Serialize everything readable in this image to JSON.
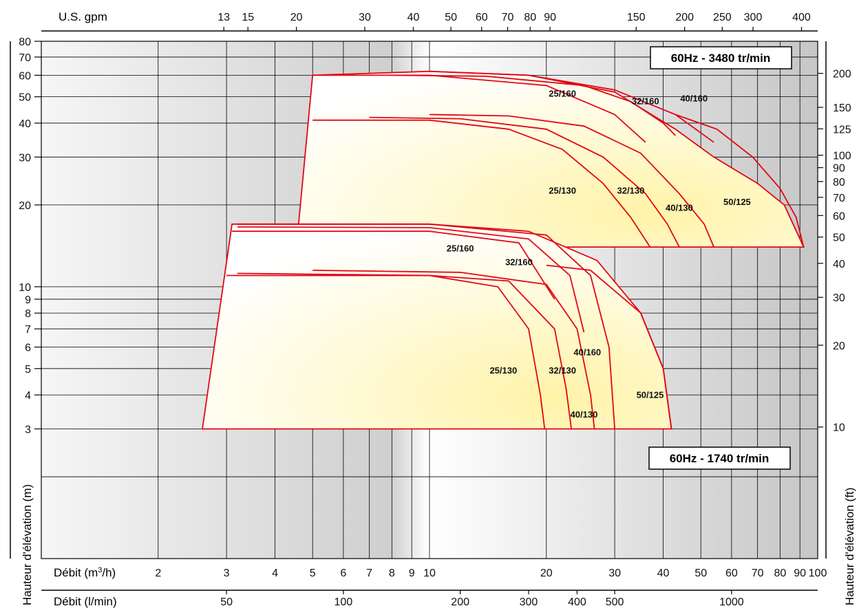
{
  "chart_data": {
    "type": "line",
    "x_scale": "log",
    "y_scale": "log",
    "xlim_m3h": [
      1,
      100
    ],
    "ylim_m": [
      1,
      80
    ],
    "axes": {
      "bottom_primary_label": "Débit (m3/h)",
      "bottom_primary_ticks": [
        "2",
        "3",
        "4",
        "5",
        "6",
        "7",
        "8",
        "9",
        "10",
        "20",
        "30",
        "40",
        "50",
        "60",
        "70",
        "80",
        "90",
        "100"
      ],
      "bottom_secondary_label": "Débit (l/min)",
      "bottom_secondary_ticks": [
        "50",
        "100",
        "200",
        "300",
        "400",
        "500",
        "1000"
      ],
      "top_label": "U.S. gpm",
      "top_ticks": [
        "13",
        "15",
        "20",
        "30",
        "40",
        "50",
        "60",
        "70",
        "80",
        "90",
        "150",
        "200",
        "250",
        "300",
        "400"
      ],
      "left_label": "Hauteur d'élévation (m)",
      "left_ticks": [
        "80",
        "70",
        "60",
        "50",
        "40",
        "30",
        "20",
        "10",
        "9",
        "8",
        "7",
        "6",
        "5",
        "4",
        "3"
      ],
      "right_label": "Hauteur d'élévation (ft)",
      "right_ticks": [
        "200",
        "150",
        "125",
        "100",
        "90",
        "80",
        "70",
        "60",
        "50",
        "40",
        "30",
        "20",
        "10"
      ]
    },
    "series_groups": [
      {
        "name": "60Hz - 3480 tr/min",
        "boundary_m3h_m": [
          [
            4.6,
            17
          ],
          [
            5,
            60
          ],
          [
            10,
            62
          ],
          [
            18,
            60
          ],
          [
            30,
            52
          ],
          [
            43,
            38
          ],
          [
            54,
            30
          ],
          [
            70,
            24
          ],
          [
            82,
            20
          ],
          [
            92,
            14
          ],
          [
            4.6,
            14
          ]
        ],
        "curves": [
          {
            "label": "25/130",
            "points": [
              [
                5,
                41
              ],
              [
                10,
                41
              ],
              [
                16,
                38
              ],
              [
                22,
                32
              ],
              [
                28,
                24
              ],
              [
                33,
                18
              ],
              [
                37,
                14
              ]
            ]
          },
          {
            "label": "32/130",
            "points": [
              [
                7,
                42
              ],
              [
                12,
                41.5
              ],
              [
                20,
                38
              ],
              [
                28,
                30
              ],
              [
                36,
                22
              ],
              [
                41,
                17
              ],
              [
                44,
                14
              ]
            ]
          },
          {
            "label": "40/130",
            "points": [
              [
                10,
                43
              ],
              [
                16,
                42.5
              ],
              [
                25,
                39
              ],
              [
                35,
                31
              ],
              [
                44,
                22
              ],
              [
                51,
                17
              ],
              [
                54,
                14
              ]
            ]
          },
          {
            "label": "25/160",
            "points": [
              [
                5,
                60
              ],
              [
                10,
                60
              ],
              [
                20,
                55
              ],
              [
                30,
                43
              ],
              [
                36,
                34
              ]
            ]
          },
          {
            "label": "32/160",
            "points": [
              [
                8,
                60
              ],
              [
                14,
                59.5
              ],
              [
                25,
                55
              ],
              [
                33,
                48
              ],
              [
                40,
                40
              ],
              [
                43,
                36
              ]
            ]
          },
          {
            "label": "40/160",
            "points": [
              [
                10,
                62
              ],
              [
                18,
                60
              ],
              [
                30,
                53
              ],
              [
                43,
                43
              ],
              [
                54,
                34
              ]
            ]
          },
          {
            "label": "50/125",
            "points": [
              [
                43,
                43
              ],
              [
                55,
                38
              ],
              [
                68,
                30
              ],
              [
                80,
                23
              ],
              [
                88,
                18
              ],
              [
                92,
                14
              ]
            ]
          }
        ],
        "curve_label_text": [
          "25/160",
          "32/160",
          "40/160",
          "25/130",
          "32/130",
          "40/130",
          "50/125"
        ]
      },
      {
        "name": "60Hz - 1740 tr/min",
        "boundary_m3h_m": [
          [
            2.6,
            3
          ],
          [
            3.1,
            17
          ],
          [
            10,
            17
          ],
          [
            18,
            16
          ],
          [
            27,
            12.5
          ],
          [
            35,
            8
          ],
          [
            40,
            5
          ],
          [
            42,
            3
          ]
        ],
        "curves": [
          {
            "label": "25/130",
            "points": [
              [
                3,
                11
              ],
              [
                10,
                11
              ],
              [
                15,
                10
              ],
              [
                18,
                7
              ],
              [
                19.3,
                4
              ],
              [
                19.8,
                3
              ]
            ]
          },
          {
            "label": "32/130",
            "points": [
              [
                3.2,
                11.2
              ],
              [
                10,
                11
              ],
              [
                16,
                10.5
              ],
              [
                21,
                7
              ],
              [
                22.5,
                4.2
              ],
              [
                23.2,
                3
              ]
            ]
          },
          {
            "label": "40/130",
            "points": [
              [
                5,
                11.5
              ],
              [
                12,
                11.3
              ],
              [
                20,
                10.2
              ],
              [
                24,
                7
              ],
              [
                26,
                4
              ],
              [
                26.6,
                3
              ]
            ]
          },
          {
            "label": "25/160",
            "points": [
              [
                3.1,
                16
              ],
              [
                10,
                16
              ],
              [
                17,
                14.5
              ],
              [
                21,
                9
              ]
            ]
          },
          {
            "label": "32/160",
            "points": [
              [
                3.2,
                16.6
              ],
              [
                10,
                16.5
              ],
              [
                18,
                15
              ],
              [
                23,
                11
              ],
              [
                25,
                6.8
              ]
            ]
          },
          {
            "label": "40/160",
            "points": [
              [
                3.2,
                17
              ],
              [
                10,
                17
              ],
              [
                20,
                15.5
              ],
              [
                26,
                11
              ],
              [
                29,
                6
              ],
              [
                30,
                3
              ]
            ]
          },
          {
            "label": "50/125",
            "points": [
              [
                20,
                12
              ],
              [
                26,
                11.5
              ],
              [
                35,
                8
              ],
              [
                40,
                5
              ],
              [
                42,
                3
              ]
            ]
          }
        ],
        "curve_label_text": [
          "25/160",
          "32/160",
          "40/160",
          "25/130",
          "32/130",
          "40/130",
          "50/125"
        ]
      }
    ]
  },
  "colors": {
    "curve": "#e30613",
    "fill_light": "#fffde6",
    "fill_yellow": "#fff0a0",
    "grid": "#000000",
    "band_dark": "#c9c9c9",
    "band_light": "#f2f2f2"
  }
}
